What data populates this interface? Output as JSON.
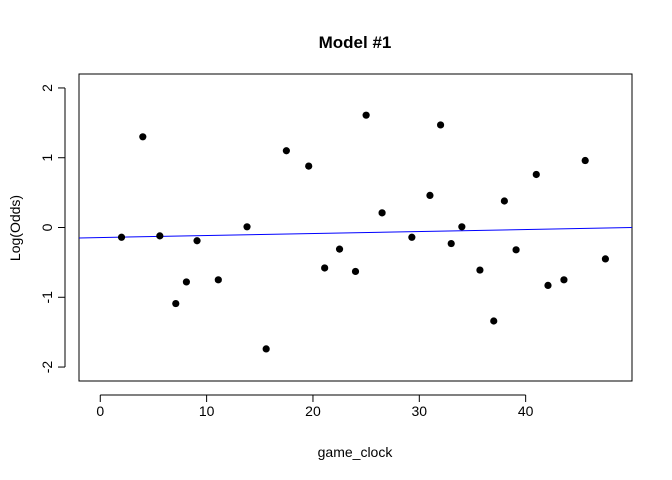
{
  "chart_data": {
    "type": "scatter",
    "title": "Model #1",
    "xlabel": "game_clock",
    "ylabel": "Log(Odds)",
    "xlim": [
      -2,
      50
    ],
    "ylim": [
      -2.2,
      2.2
    ],
    "x_ticks": [
      0,
      10,
      20,
      30,
      40
    ],
    "y_ticks": [
      -2,
      -1,
      0,
      1,
      2
    ],
    "x_tick_labels": [
      "0",
      "10",
      "20",
      "30",
      "40"
    ],
    "y_tick_labels": [
      "-2",
      "-1",
      "0",
      "1",
      "2"
    ],
    "grid": false,
    "legend": "none",
    "points": [
      {
        "x": 2.0,
        "y": -0.14
      },
      {
        "x": 4.0,
        "y": 1.3
      },
      {
        "x": 5.6,
        "y": -0.12
      },
      {
        "x": 7.1,
        "y": -1.09
      },
      {
        "x": 8.1,
        "y": -0.78
      },
      {
        "x": 9.1,
        "y": -0.19
      },
      {
        "x": 11.1,
        "y": -0.75
      },
      {
        "x": 13.8,
        "y": 0.01
      },
      {
        "x": 15.6,
        "y": -1.74
      },
      {
        "x": 17.5,
        "y": 1.1
      },
      {
        "x": 19.6,
        "y": 0.88
      },
      {
        "x": 21.1,
        "y": -0.58
      },
      {
        "x": 22.5,
        "y": -0.31
      },
      {
        "x": 24.0,
        "y": -0.63
      },
      {
        "x": 25.0,
        "y": 1.61
      },
      {
        "x": 26.5,
        "y": 0.21
      },
      {
        "x": 29.3,
        "y": -0.14
      },
      {
        "x": 31.0,
        "y": 0.46
      },
      {
        "x": 32.0,
        "y": 1.47
      },
      {
        "x": 33.0,
        "y": -0.23
      },
      {
        "x": 34.0,
        "y": 0.01
      },
      {
        "x": 35.7,
        "y": -0.61
      },
      {
        "x": 37.0,
        "y": -1.34
      },
      {
        "x": 38.0,
        "y": 0.38
      },
      {
        "x": 39.1,
        "y": -0.32
      },
      {
        "x": 41.0,
        "y": 0.76
      },
      {
        "x": 42.1,
        "y": -0.83
      },
      {
        "x": 43.6,
        "y": -0.75
      },
      {
        "x": 45.6,
        "y": 0.96
      },
      {
        "x": 47.5,
        "y": -0.45
      }
    ],
    "fit_line": {
      "x": [
        -2,
        50
      ],
      "y": [
        -0.15,
        0.0
      ]
    },
    "colors": {
      "points": "#000000",
      "fit_line": "#0000ff",
      "frame": "#000000"
    }
  }
}
